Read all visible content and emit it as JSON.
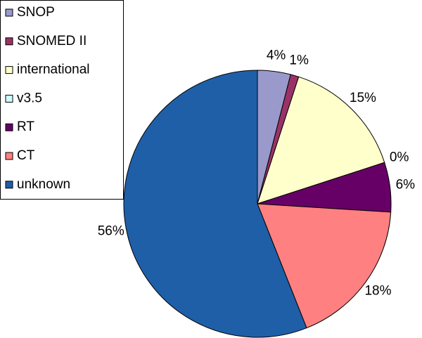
{
  "chart_data": {
    "type": "pie",
    "categories": [
      "SNOP",
      "SNOMED II",
      "international",
      "v3.5",
      "RT",
      "CT",
      "unknown"
    ],
    "values": [
      4,
      1,
      15,
      0,
      6,
      18,
      56
    ],
    "value_labels": [
      "4%",
      "1%",
      "15%",
      "0%",
      "6%",
      "18%",
      "56%"
    ],
    "colors": [
      "#9999cc",
      "#993366",
      "#ffffcc",
      "#ccffff",
      "#660066",
      "#ff8080",
      "#1f5fa8"
    ],
    "legend": "top-left"
  }
}
